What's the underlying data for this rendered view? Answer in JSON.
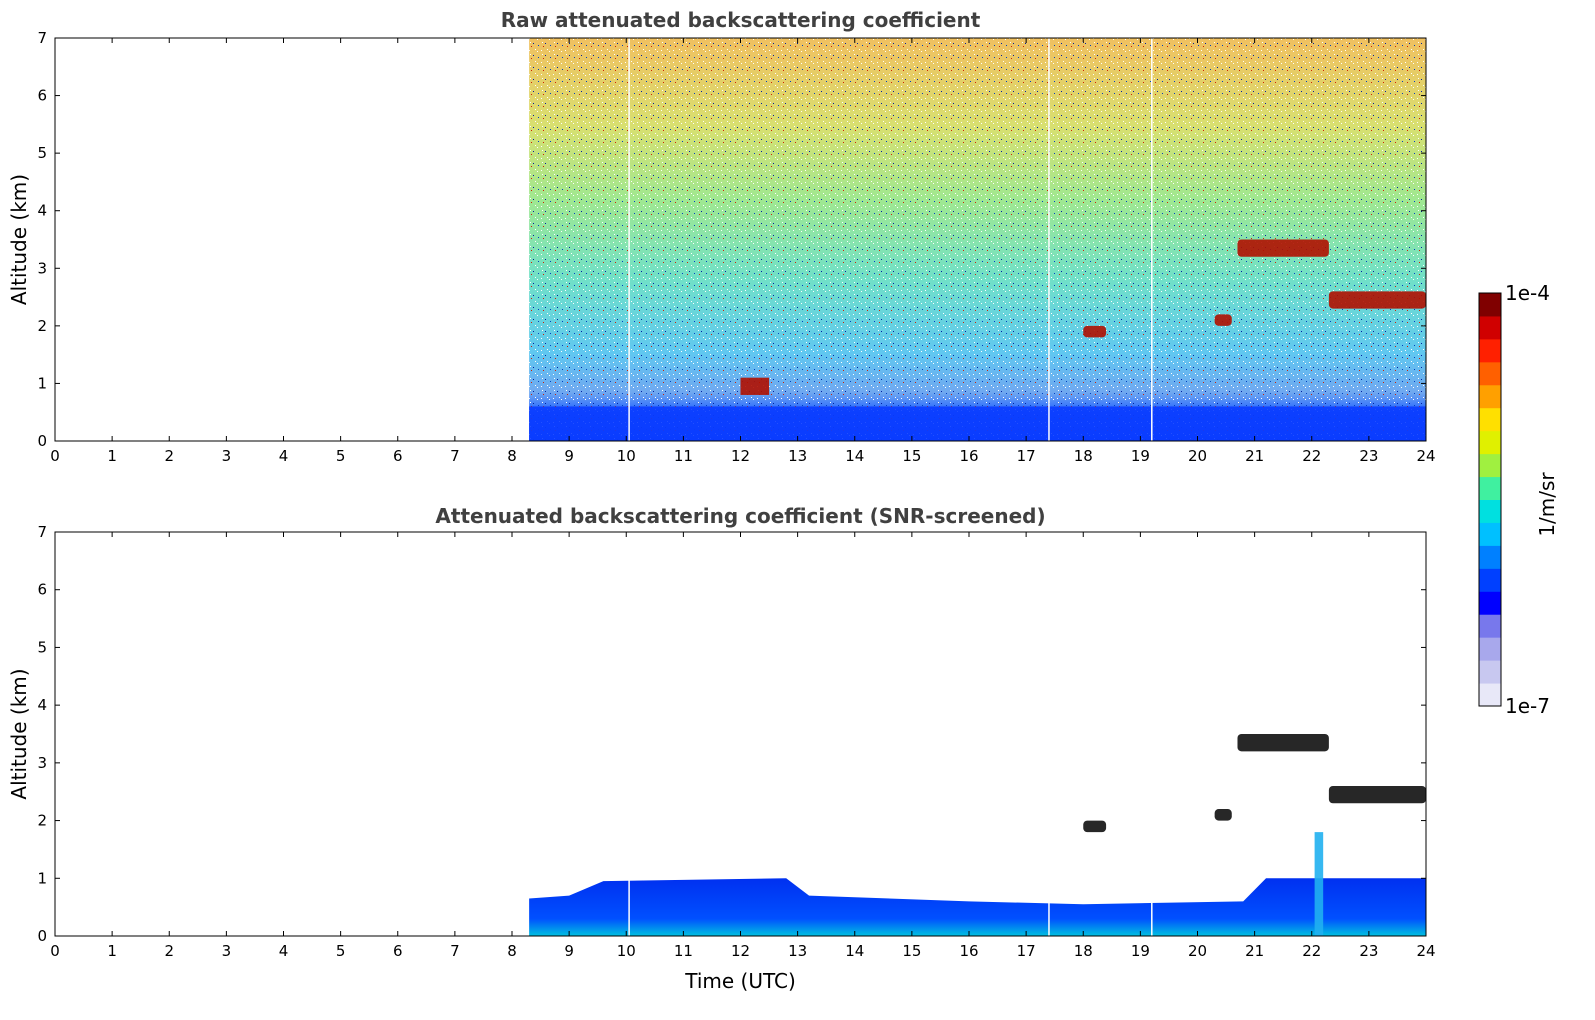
{
  "chart_data": [
    {
      "type": "heatmap",
      "title": "Raw attenuated backscattering coefficient",
      "ylabel": "Altitude (km)",
      "xlabel": "",
      "xlim": [
        0,
        24
      ],
      "ylim": [
        0,
        7
      ],
      "x_ticks": [
        "0",
        "1",
        "2",
        "3",
        "4",
        "5",
        "6",
        "7",
        "8",
        "9",
        "10",
        "11",
        "12",
        "13",
        "14",
        "15",
        "16",
        "17",
        "18",
        "19",
        "20",
        "21",
        "22",
        "23",
        "24"
      ],
      "y_ticks": [
        "0",
        "1",
        "2",
        "3",
        "4",
        "5",
        "6",
        "7"
      ],
      "data_start_time": 8.3,
      "data_gaps": [
        10.05,
        17.4,
        19.2
      ],
      "features": [
        {
          "name": "boundary layer",
          "x_range": [
            8.3,
            24
          ],
          "altitude_km": [
            0,
            0.6
          ]
        },
        {
          "name": "aerosol/cloud layer",
          "x_range": [
            12.0,
            12.5
          ],
          "altitude_km": [
            0.8,
            1.1
          ]
        },
        {
          "name": "cloud layer",
          "x_range": [
            18.0,
            18.4
          ],
          "altitude_km": [
            1.8,
            2.0
          ]
        },
        {
          "name": "cloud layer",
          "x_range": [
            20.3,
            20.6
          ],
          "altitude_km": [
            2.0,
            2.2
          ]
        },
        {
          "name": "cloud layer",
          "x_range": [
            20.7,
            22.3
          ],
          "altitude_km": [
            3.2,
            3.5
          ]
        },
        {
          "name": "cloud layer",
          "x_range": [
            22.3,
            24
          ],
          "altitude_km": [
            2.3,
            2.6
          ]
        }
      ]
    },
    {
      "type": "heatmap",
      "title": "Attenuated backscattering coefficient (SNR-screened)",
      "ylabel": "Altitude (km)",
      "xlabel": "Time (UTC)",
      "xlim": [
        0,
        24
      ],
      "ylim": [
        0,
        7
      ],
      "x_ticks": [
        "0",
        "1",
        "2",
        "3",
        "4",
        "5",
        "6",
        "7",
        "8",
        "9",
        "10",
        "11",
        "12",
        "13",
        "14",
        "15",
        "16",
        "17",
        "18",
        "19",
        "20",
        "21",
        "22",
        "23",
        "24"
      ],
      "y_ticks": [
        "0",
        "1",
        "2",
        "3",
        "4",
        "5",
        "6",
        "7"
      ],
      "data_start_time": 8.3,
      "data_gaps": [
        10.05,
        17.4,
        19.2
      ],
      "features": [
        {
          "name": "boundary layer",
          "x_range": [
            8.3,
            24
          ],
          "altitude_km": [
            0,
            1.0
          ]
        },
        {
          "name": "plume",
          "x_range": [
            22.05,
            22.2
          ],
          "altitude_km": [
            0,
            1.8
          ]
        },
        {
          "name": "cloud layer",
          "x_range": [
            18.0,
            18.4
          ],
          "altitude_km": [
            1.8,
            2.0
          ]
        },
        {
          "name": "cloud layer",
          "x_range": [
            20.3,
            20.6
          ],
          "altitude_km": [
            2.0,
            2.2
          ]
        },
        {
          "name": "cloud layer",
          "x_range": [
            20.7,
            22.3
          ],
          "altitude_km": [
            3.2,
            3.5
          ]
        },
        {
          "name": "cloud layer",
          "x_range": [
            22.3,
            24
          ],
          "altitude_km": [
            2.3,
            2.6
          ]
        }
      ]
    }
  ],
  "colorbar": {
    "max_label": "1e-4",
    "min_label": "1e-7",
    "units": "1/m/sr",
    "colors": [
      "#e8e8f8",
      "#c8c8f0",
      "#a8a8ec",
      "#7878ec",
      "#0000ff",
      "#0040ff",
      "#0080ff",
      "#00c0ff",
      "#00e0e0",
      "#40f0a0",
      "#a0f040",
      "#e0f000",
      "#ffe000",
      "#ffa000",
      "#ff6000",
      "#ff2000",
      "#d00000",
      "#800000"
    ]
  }
}
